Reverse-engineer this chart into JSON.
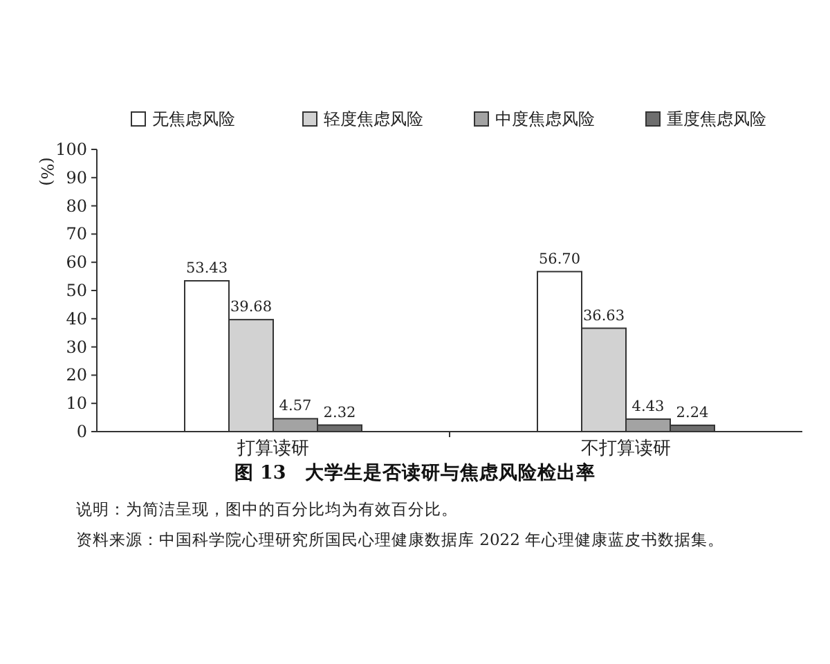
{
  "chart_data": {
    "type": "bar",
    "title": "图 13　大学生是否读研与焦虑风险检出率",
    "ylabel": "(%)",
    "categories": [
      "打算读研",
      "不打算读研"
    ],
    "series": [
      {
        "name": "无焦虑风险",
        "color": "#ffffff",
        "values": [
          53.43,
          56.7
        ],
        "value_labels": [
          "53.43",
          "56.70"
        ]
      },
      {
        "name": "轻度焦虑风险",
        "color": "#d2d2d2",
        "values": [
          39.68,
          36.63
        ],
        "value_labels": [
          "39.68",
          "36.63"
        ]
      },
      {
        "name": "中度焦虑风险",
        "color": "#a3a3a3",
        "values": [
          4.57,
          4.43
        ],
        "value_labels": [
          "4.57",
          "4.43"
        ]
      },
      {
        "name": "重度焦虑风险",
        "color": "#6e6e6e",
        "values": [
          2.32,
          2.24
        ],
        "value_labels": [
          "2.32",
          "2.24"
        ]
      }
    ],
    "ylim": [
      0,
      100
    ],
    "yticks": [
      0,
      10,
      20,
      30,
      40,
      50,
      60,
      70,
      80,
      90,
      100
    ],
    "legend": "top",
    "grid": false,
    "annotations": [
      "说明：为简洁呈现，图中的百分比均为有效百分比。",
      "资料来源：中国科学院心理研究所国民心理健康数据库 2022 年心理健康蓝皮书数据集。"
    ]
  }
}
